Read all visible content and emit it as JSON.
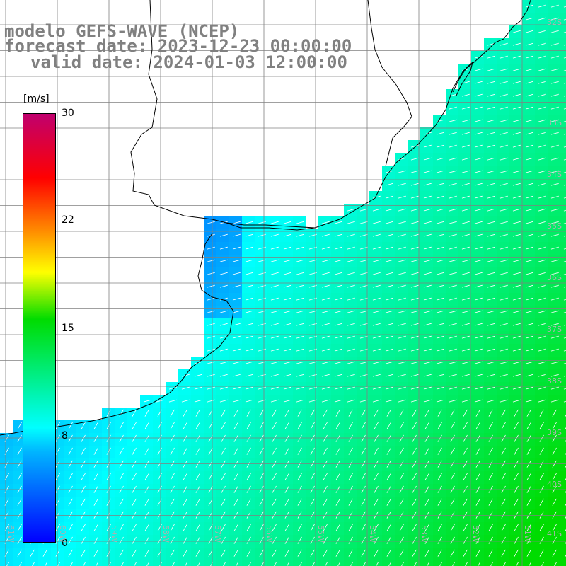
{
  "title": {
    "line1": "modelo GEFS-WAVE (NCEP)",
    "line2": "forecast date: 2023-12-23 00:00:00",
    "line3": "valid date: 2024-01-03 12:00:00"
  },
  "colorbar": {
    "unit": "[m/s]",
    "ticks": [
      "30",
      "22",
      "15",
      "8",
      "0"
    ],
    "range": [
      0,
      30
    ],
    "colors": [
      "#0000ff",
      "#00b4ff",
      "#00ffff",
      "#00dc00",
      "#ffff00",
      "#ff8800",
      "#ff0000",
      "#c0006e"
    ]
  },
  "lat_labels": [
    "32S",
    "33S",
    "34S",
    "35S",
    "36S",
    "37S",
    "38S",
    "39S",
    "40S",
    "41S"
  ],
  "lon_labels": [
    "61W",
    "60W",
    "59W",
    "58W",
    "57W",
    "56W",
    "55W",
    "54W",
    "53W",
    "52W",
    "51W"
  ],
  "colors": {
    "grid": "#808080",
    "coast": "#000000",
    "arrow": "#ffffff",
    "title": "#808080",
    "land": "#ffffff"
  }
}
